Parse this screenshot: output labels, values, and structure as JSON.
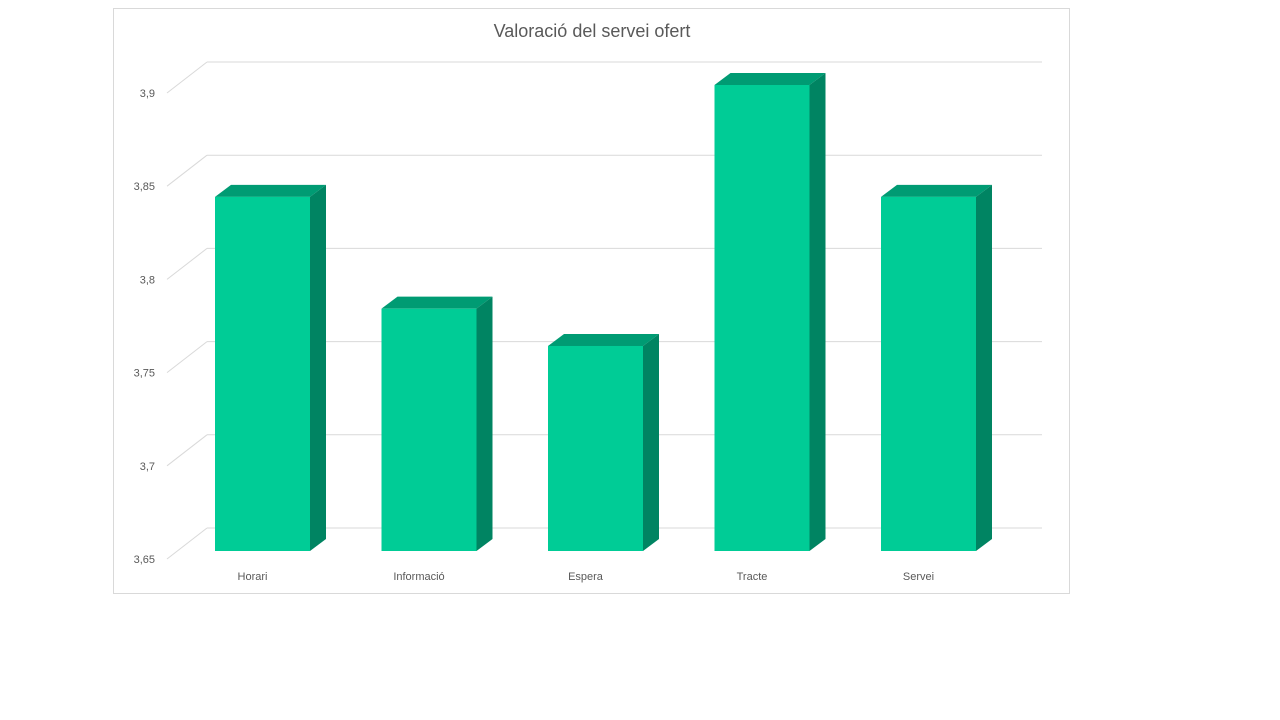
{
  "chart_data": {
    "type": "bar",
    "style": "3d-column",
    "title": "Valoració del servei ofert",
    "categories": [
      "Horari",
      "Informació",
      "Espera",
      "Tracte",
      "Servei"
    ],
    "values": [
      3.84,
      3.78,
      3.76,
      3.9,
      3.84
    ],
    "ylim": [
      3.65,
      3.9
    ],
    "yticks": [
      "3,65",
      "3,7",
      "3,75",
      "3,8",
      "3,85",
      "3,9"
    ],
    "xlabel": "",
    "ylabel": "",
    "grid": true,
    "legend": "none",
    "colors": {
      "front": "#00cc96",
      "top": "#009b73",
      "side": "#008462",
      "grid": "#d9d9d9"
    }
  }
}
